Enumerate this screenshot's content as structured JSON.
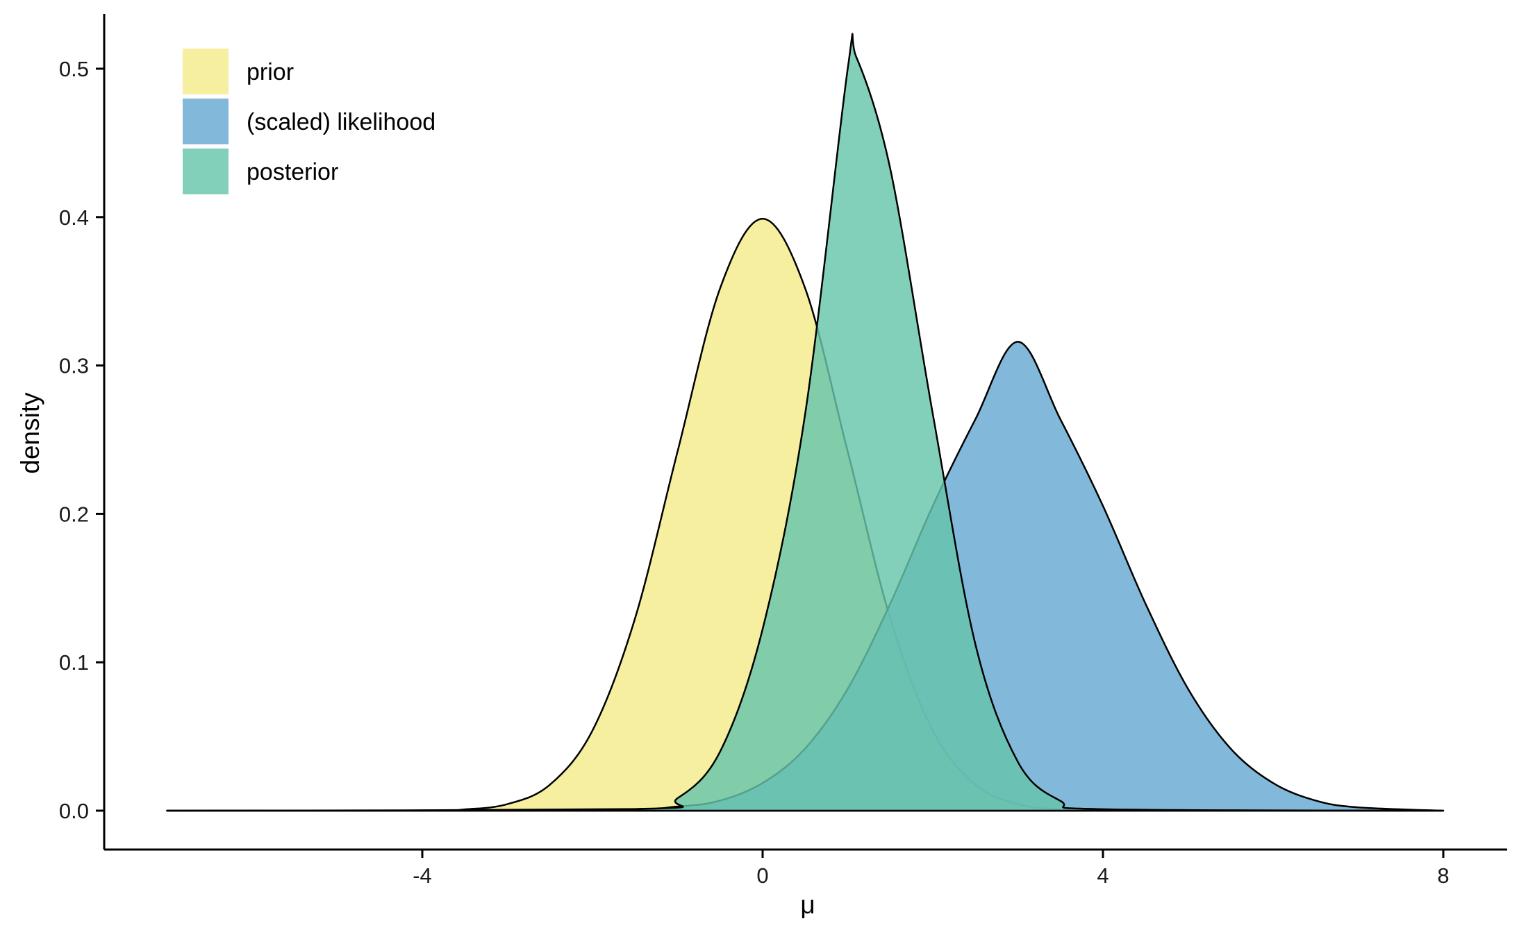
{
  "chart_data": {
    "type": "area",
    "title": "",
    "xlabel": "μ",
    "ylabel": "density",
    "xlim": [
      -7.0,
      8.0
    ],
    "ylim": [
      0.0,
      0.5
    ],
    "x_ticks": [
      -4,
      0,
      4,
      8
    ],
    "x_tick_labels": [
      "-4",
      "0",
      "4",
      "8"
    ],
    "y_ticks": [
      0.0,
      0.1,
      0.2,
      0.3,
      0.4,
      0.5
    ],
    "y_tick_labels": [
      "0.0",
      "0.1",
      "0.2",
      "0.3",
      "0.4",
      "0.5"
    ],
    "grid": false,
    "legend_position": "top-left",
    "series": [
      {
        "name": "prior",
        "color": "#F4EB8B",
        "opacity": 0.82,
        "x": [
          -7.0,
          -4.0,
          -3.5,
          -3.0,
          -2.5,
          -2.0,
          -1.5,
          -1.0,
          -0.5,
          0.0,
          0.5,
          1.0,
          1.5,
          2.0,
          2.5,
          3.0,
          3.5,
          4.0,
          8.0
        ],
        "values": [
          0.0,
          0.0001,
          0.0009,
          0.0044,
          0.0175,
          0.054,
          0.1295,
          0.242,
          0.352,
          0.3989,
          0.352,
          0.242,
          0.1295,
          0.054,
          0.0175,
          0.0044,
          0.0009,
          0.0001,
          0.0
        ]
      },
      {
        "name": "(scaled) likelihood",
        "color": "#6CABD3",
        "opacity": 0.85,
        "x": [
          -7.0,
          -2.0,
          -1.0,
          -0.5,
          0.0,
          0.5,
          1.0,
          1.5,
          2.0,
          2.5,
          3.0,
          3.5,
          4.0,
          4.5,
          5.0,
          5.5,
          6.0,
          6.5,
          7.0,
          8.0
        ],
        "values": [
          0.0,
          0.0004,
          0.0028,
          0.0068,
          0.0186,
          0.0419,
          0.0821,
          0.1395,
          0.2054,
          0.2637,
          0.316,
          0.2637,
          0.2054,
          0.1395,
          0.0821,
          0.0419,
          0.0186,
          0.0068,
          0.0022,
          0.0
        ]
      },
      {
        "name": "posterior",
        "color": "#66C5AB",
        "opacity": 0.82,
        "x": [
          -7.0,
          -1.5,
          -1.0,
          -0.5,
          0.0,
          0.5,
          1.0,
          1.1,
          1.5,
          2.0,
          2.5,
          3.0,
          3.5,
          4.0,
          8.0
        ],
        "values": [
          0.0,
          0.0011,
          0.0084,
          0.0398,
          0.1224,
          0.2674,
          0.5,
          0.508,
          0.4326,
          0.2674,
          0.1123,
          0.0329,
          0.0066,
          0.001,
          0.0
        ]
      }
    ]
  }
}
